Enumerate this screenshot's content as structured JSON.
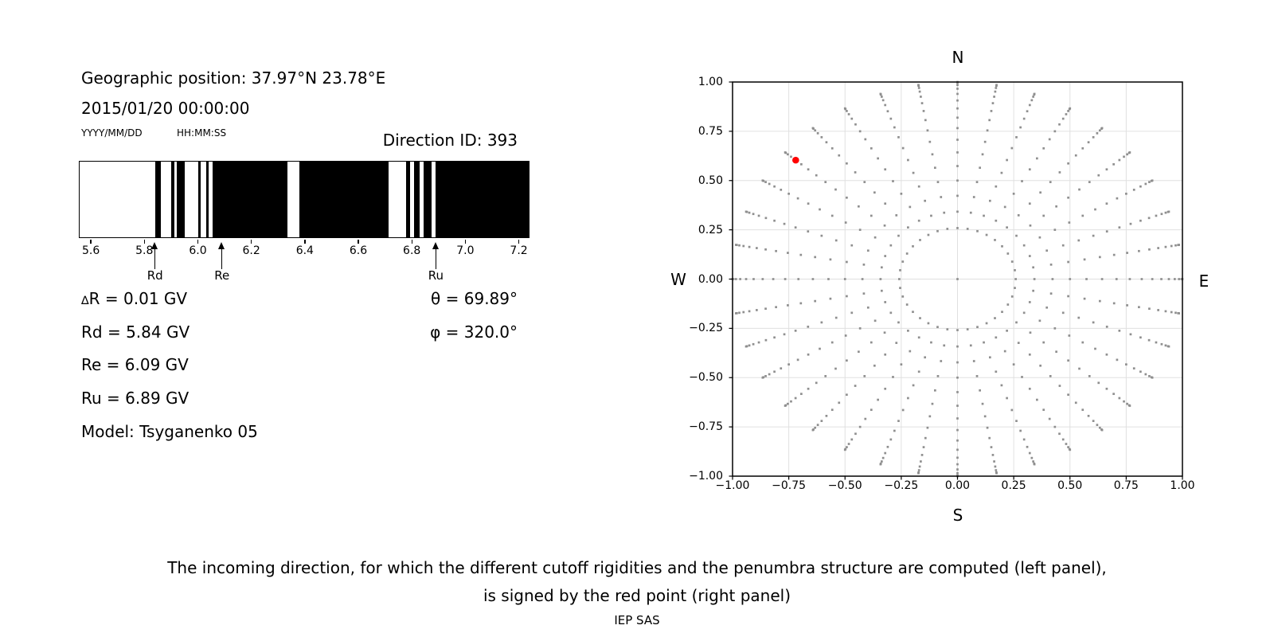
{
  "colors": {
    "dot_gray": "#8f8f8f",
    "red_point": "#ff0000",
    "gridline": "#e0e0e0",
    "band_black": "#000000",
    "text": "#000000"
  },
  "left_panel": {
    "geo_position": "Geographic position: 37.97°N 23.78°E",
    "datetime": "2015/01/20 00:00:00",
    "date_format_label": "YYYY/MM/DD",
    "time_format_label": "HH:MM:SS",
    "direction_id_label": "Direction ID: 393",
    "info": {
      "delta_symbol": "∆",
      "delta_rest": "R = 0.01 GV",
      "rd": "Rd = 5.84 GV",
      "re": "Re = 6.09 GV",
      "ru": "Ru = 6.89 GV",
      "model": "Model: Tsyganenko 05",
      "theta_symbol": "θ",
      "theta_rest": " = 69.89°",
      "phi_symbol": "φ",
      "phi_rest": " = 320.0°"
    }
  },
  "right_panel": {
    "compass": {
      "top": "N",
      "bottom": "S",
      "left": "W",
      "right": "E"
    }
  },
  "footer": {
    "caption_line1": "The incoming direction, for which the different cutoff rigidities and the penumbra structure are computed (left panel),",
    "caption_line2": "is signed by the red point (right panel)",
    "credit": "IEP SAS"
  },
  "chart_data": [
    {
      "type": "barcode",
      "description": "Penumbra structure: black bands are forbidden/allowed rigidity intervals in GV along the x axis",
      "xlim": [
        5.555,
        7.24
      ],
      "xticks": [
        5.6,
        5.8,
        6.0,
        6.2,
        6.4,
        6.6,
        6.8,
        7.0,
        7.2
      ],
      "xtick_labels": [
        "5.6",
        "5.8",
        "6.0",
        "6.2",
        "6.4",
        "6.6",
        "6.8",
        "7.0",
        "7.2"
      ],
      "black_bands_gv": [
        [
          5.84,
          5.86
        ],
        [
          5.9,
          5.91
        ],
        [
          5.92,
          5.95
        ],
        [
          6.0,
          6.01
        ],
        [
          6.03,
          6.04
        ],
        [
          6.055,
          6.335
        ],
        [
          6.38,
          6.715
        ],
        [
          6.78,
          6.795
        ],
        [
          6.81,
          6.83
        ],
        [
          6.845,
          6.875
        ],
        [
          6.89,
          7.24
        ]
      ],
      "markers": [
        {
          "label": "Rd",
          "gv": 5.84
        },
        {
          "label": "Re",
          "gv": 6.09
        },
        {
          "label": "Ru",
          "gv": 6.89
        }
      ]
    },
    {
      "type": "scatter",
      "description": "Grid of incoming directions: gray square dots at radius sin(zenith) for each azimuth spoke; red dot marks the selected direction",
      "xlim": [
        -1,
        1
      ],
      "ylim": [
        -1,
        1
      ],
      "ticks": [
        -1,
        -0.75,
        -0.5,
        -0.25,
        0,
        0.25,
        0.5,
        0.75,
        1
      ],
      "tick_labels": [
        "−1.00",
        "−0.75",
        "−0.50",
        "−0.25",
        "0.00",
        "0.25",
        "0.50",
        "0.75",
        "1.00"
      ],
      "grid": true,
      "direction_grid": {
        "azimuth_start_deg": 0,
        "azimuth_step_deg": 10,
        "azimuth_count": 36,
        "zenith_min_deg": 15,
        "zenith_max_deg": 90,
        "zenith_step_deg": 5,
        "radius": "sin(zenith)",
        "center_dot": true
      },
      "selected_direction": {
        "x": -0.7192,
        "y": 0.6035,
        "zenith_deg": 69.89,
        "azimuth_deg": 320.0
      }
    }
  ]
}
